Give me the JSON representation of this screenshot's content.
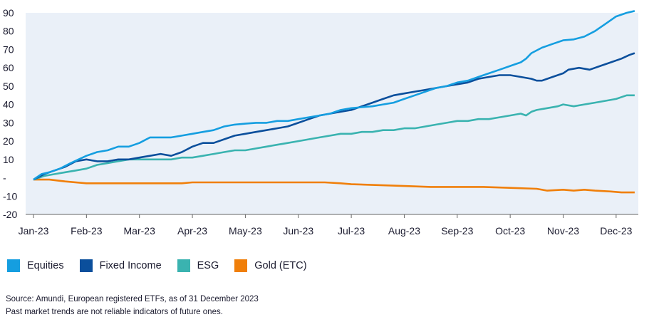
{
  "chart_data": {
    "type": "line",
    "x": [
      "Jan-23",
      "Feb-23",
      "Mar-23",
      "Apr-23",
      "May-23",
      "Jun-23",
      "Jul-23",
      "Aug-23",
      "Sep-23",
      "Oct-23",
      "Nov-23",
      "Dec-23"
    ],
    "y_ticks": [
      "-20",
      "-10",
      "-",
      "10",
      "20",
      "30",
      "40",
      "50",
      "60",
      "70",
      "80",
      "90"
    ],
    "ylim": [
      -20,
      90
    ],
    "grid": false,
    "legend_position": "bottom-left",
    "series": [
      {
        "name": "Equities",
        "color": "#159ee0",
        "points": [
          [
            0,
            -1
          ],
          [
            0.15,
            2
          ],
          [
            0.3,
            3
          ],
          [
            0.5,
            5
          ],
          [
            0.7,
            8
          ],
          [
            0.85,
            10
          ],
          [
            1,
            12
          ],
          [
            1.2,
            14
          ],
          [
            1.4,
            15
          ],
          [
            1.6,
            17
          ],
          [
            1.8,
            17
          ],
          [
            2,
            19
          ],
          [
            2.2,
            22
          ],
          [
            2.4,
            22
          ],
          [
            2.6,
            22
          ],
          [
            2.8,
            23
          ],
          [
            3,
            24
          ],
          [
            3.2,
            25
          ],
          [
            3.4,
            26
          ],
          [
            3.6,
            28
          ],
          [
            3.8,
            29
          ],
          [
            4,
            29.5
          ],
          [
            4.2,
            30
          ],
          [
            4.4,
            30
          ],
          [
            4.6,
            31
          ],
          [
            4.8,
            31
          ],
          [
            5,
            32
          ],
          [
            5.2,
            33
          ],
          [
            5.4,
            34
          ],
          [
            5.6,
            35
          ],
          [
            5.8,
            37
          ],
          [
            6,
            38
          ],
          [
            6.2,
            38.5
          ],
          [
            6.4,
            39
          ],
          [
            6.6,
            40
          ],
          [
            6.8,
            41
          ],
          [
            7,
            43
          ],
          [
            7.2,
            45
          ],
          [
            7.4,
            47
          ],
          [
            7.6,
            49
          ],
          [
            7.8,
            50
          ],
          [
            8,
            52
          ],
          [
            8.2,
            53
          ],
          [
            8.4,
            55
          ],
          [
            8.6,
            57
          ],
          [
            8.8,
            59
          ],
          [
            9,
            61
          ],
          [
            9.1,
            62
          ],
          [
            9.2,
            63
          ],
          [
            9.3,
            65
          ],
          [
            9.4,
            68
          ],
          [
            9.6,
            71
          ],
          [
            9.8,
            73
          ],
          [
            10,
            75
          ],
          [
            10.2,
            75.5
          ],
          [
            10.4,
            77
          ],
          [
            10.6,
            80
          ],
          [
            10.8,
            84
          ],
          [
            11,
            88
          ],
          [
            11.2,
            90
          ],
          [
            11.35,
            91
          ]
        ]
      },
      {
        "name": "Fixed Income",
        "color": "#0b4f9c",
        "points": [
          [
            0,
            -1
          ],
          [
            0.2,
            2
          ],
          [
            0.4,
            4
          ],
          [
            0.6,
            6
          ],
          [
            0.8,
            9
          ],
          [
            1,
            10
          ],
          [
            1.2,
            9
          ],
          [
            1.4,
            9
          ],
          [
            1.6,
            10
          ],
          [
            1.8,
            10
          ],
          [
            2,
            11
          ],
          [
            2.2,
            12
          ],
          [
            2.4,
            13
          ],
          [
            2.6,
            12
          ],
          [
            2.8,
            14
          ],
          [
            3,
            17
          ],
          [
            3.2,
            19
          ],
          [
            3.4,
            19
          ],
          [
            3.6,
            21
          ],
          [
            3.8,
            23
          ],
          [
            4,
            24
          ],
          [
            4.2,
            25
          ],
          [
            4.4,
            26
          ],
          [
            4.6,
            27
          ],
          [
            4.8,
            28
          ],
          [
            5,
            30
          ],
          [
            5.2,
            32
          ],
          [
            5.4,
            34
          ],
          [
            5.6,
            35
          ],
          [
            5.8,
            36
          ],
          [
            6,
            37
          ],
          [
            6.2,
            39
          ],
          [
            6.4,
            41
          ],
          [
            6.6,
            43
          ],
          [
            6.8,
            45
          ],
          [
            7,
            46
          ],
          [
            7.2,
            47
          ],
          [
            7.4,
            48
          ],
          [
            7.6,
            49
          ],
          [
            7.8,
            50
          ],
          [
            8,
            51
          ],
          [
            8.2,
            52
          ],
          [
            8.4,
            54
          ],
          [
            8.6,
            55
          ],
          [
            8.8,
            56
          ],
          [
            9,
            56
          ],
          [
            9.2,
            55
          ],
          [
            9.4,
            54
          ],
          [
            9.5,
            53
          ],
          [
            9.6,
            53
          ],
          [
            9.8,
            55
          ],
          [
            10,
            57
          ],
          [
            10.1,
            59
          ],
          [
            10.3,
            60
          ],
          [
            10.5,
            59
          ],
          [
            10.7,
            61
          ],
          [
            10.9,
            63
          ],
          [
            11.1,
            65
          ],
          [
            11.25,
            67
          ],
          [
            11.35,
            68
          ]
        ]
      },
      {
        "name": "ESG",
        "color": "#3ab3b0",
        "points": [
          [
            0,
            -1
          ],
          [
            0.2,
            1
          ],
          [
            0.4,
            2
          ],
          [
            0.6,
            3
          ],
          [
            0.8,
            4
          ],
          [
            1,
            5
          ],
          [
            1.2,
            7
          ],
          [
            1.4,
            8
          ],
          [
            1.6,
            9
          ],
          [
            1.8,
            10
          ],
          [
            2,
            10
          ],
          [
            2.2,
            10
          ],
          [
            2.4,
            10
          ],
          [
            2.6,
            10
          ],
          [
            2.8,
            11
          ],
          [
            3,
            11
          ],
          [
            3.2,
            12
          ],
          [
            3.4,
            13
          ],
          [
            3.6,
            14
          ],
          [
            3.8,
            15
          ],
          [
            4,
            15
          ],
          [
            4.2,
            16
          ],
          [
            4.4,
            17
          ],
          [
            4.6,
            18
          ],
          [
            4.8,
            19
          ],
          [
            5,
            20
          ],
          [
            5.2,
            21
          ],
          [
            5.4,
            22
          ],
          [
            5.6,
            23
          ],
          [
            5.8,
            24
          ],
          [
            6,
            24
          ],
          [
            6.2,
            25
          ],
          [
            6.4,
            25
          ],
          [
            6.6,
            26
          ],
          [
            6.8,
            26
          ],
          [
            7,
            27
          ],
          [
            7.2,
            27
          ],
          [
            7.4,
            28
          ],
          [
            7.6,
            29
          ],
          [
            7.8,
            30
          ],
          [
            8,
            31
          ],
          [
            8.2,
            31
          ],
          [
            8.4,
            32
          ],
          [
            8.6,
            32
          ],
          [
            8.8,
            33
          ],
          [
            9,
            34
          ],
          [
            9.2,
            35
          ],
          [
            9.3,
            34
          ],
          [
            9.4,
            36
          ],
          [
            9.5,
            37
          ],
          [
            9.7,
            38
          ],
          [
            9.9,
            39
          ],
          [
            10,
            40
          ],
          [
            10.2,
            39
          ],
          [
            10.4,
            40
          ],
          [
            10.6,
            41
          ],
          [
            10.8,
            42
          ],
          [
            11,
            43
          ],
          [
            11.2,
            45
          ],
          [
            11.35,
            45
          ]
        ]
      },
      {
        "name": "Gold (ETC)",
        "color": "#f07f0a",
        "points": [
          [
            0,
            -1
          ],
          [
            0.3,
            -1
          ],
          [
            0.6,
            -2
          ],
          [
            1,
            -3
          ],
          [
            1.5,
            -3
          ],
          [
            2,
            -3
          ],
          [
            2.5,
            -3
          ],
          [
            2.8,
            -3
          ],
          [
            3,
            -2.5
          ],
          [
            3.3,
            -2.5
          ],
          [
            3.6,
            -2.5
          ],
          [
            4,
            -2.5
          ],
          [
            4.5,
            -2.5
          ],
          [
            5,
            -2.5
          ],
          [
            5.5,
            -2.5
          ],
          [
            5.8,
            -3
          ],
          [
            6,
            -3.5
          ],
          [
            6.5,
            -4
          ],
          [
            7,
            -4.5
          ],
          [
            7.5,
            -5
          ],
          [
            8,
            -5
          ],
          [
            8.5,
            -5
          ],
          [
            9,
            -5.5
          ],
          [
            9.5,
            -6
          ],
          [
            9.7,
            -7
          ],
          [
            10,
            -6.5
          ],
          [
            10.2,
            -7
          ],
          [
            10.4,
            -6.5
          ],
          [
            10.6,
            -7
          ],
          [
            10.9,
            -7.5
          ],
          [
            11.1,
            -8
          ],
          [
            11.35,
            -8
          ]
        ]
      }
    ]
  },
  "footer": {
    "source": "Source: Amundi, European registered ETFs, as of 31 December 2023",
    "disclaimer": "Past market trends are not reliable indicators of future ones."
  }
}
